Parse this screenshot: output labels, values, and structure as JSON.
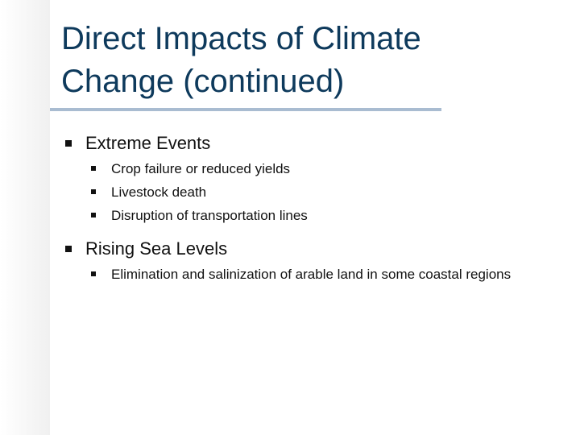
{
  "title": "Direct Impacts of Climate Change (continued)",
  "bullets": [
    {
      "text": "Extreme Events",
      "items": [
        "Crop failure or reduced yields",
        "Livestock death",
        "Disruption of transportation lines"
      ]
    },
    {
      "text": "Rising Sea Levels",
      "items": [
        "Elimination and salinization of arable land in some coastal regions"
      ]
    }
  ]
}
